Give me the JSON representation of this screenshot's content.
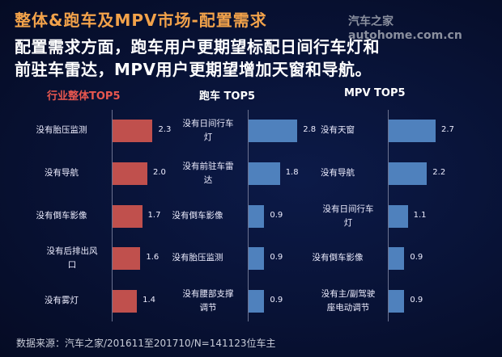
{
  "title": "整体&跑车及MPV市场-配置需求",
  "watermark": "汽车之家autohome.com.cn",
  "subtitle_lines": [
    "配置需求方面，跑车用户更期望标配日间行车灯和",
    "前驻车雷达，MPV用户更期望增加天窗和导航。"
  ],
  "footer": "数据来源：汽车之家/201611至201710/N=141123位车主",
  "chart_data": [
    {
      "type": "bar",
      "orientation": "horizontal",
      "title": "行业整体TOP5",
      "title_color": "#e8574f",
      "bar_color": "#c0504d",
      "categories": [
        "没有胎压监测",
        "没有导航",
        "没有倒车影像",
        "没有后排出风口",
        "没有雾灯"
      ],
      "values": [
        2.3,
        2.0,
        1.7,
        1.6,
        1.4
      ]
    },
    {
      "type": "bar",
      "orientation": "horizontal",
      "title": "跑车 TOP5",
      "title_color": "#ffffff",
      "bar_color": "#4f81bd",
      "categories": [
        "没有日间行车灯",
        "没有前驻车雷达",
        "没有倒车影像",
        "没有胎压监测",
        "没有腰部支撑调节"
      ],
      "values": [
        2.8,
        1.8,
        0.9,
        0.9,
        0.9
      ]
    },
    {
      "type": "bar",
      "orientation": "horizontal",
      "title": "MPV TOP5",
      "title_color": "#ffffff",
      "bar_color": "#4f81bd",
      "categories": [
        "没有天窗",
        "没有导航",
        "没有日间行车灯",
        "没有倒车影像",
        "没有主/副驾驶座电动调节"
      ],
      "values": [
        2.7,
        2.2,
        1.1,
        0.9,
        0.9
      ]
    }
  ]
}
